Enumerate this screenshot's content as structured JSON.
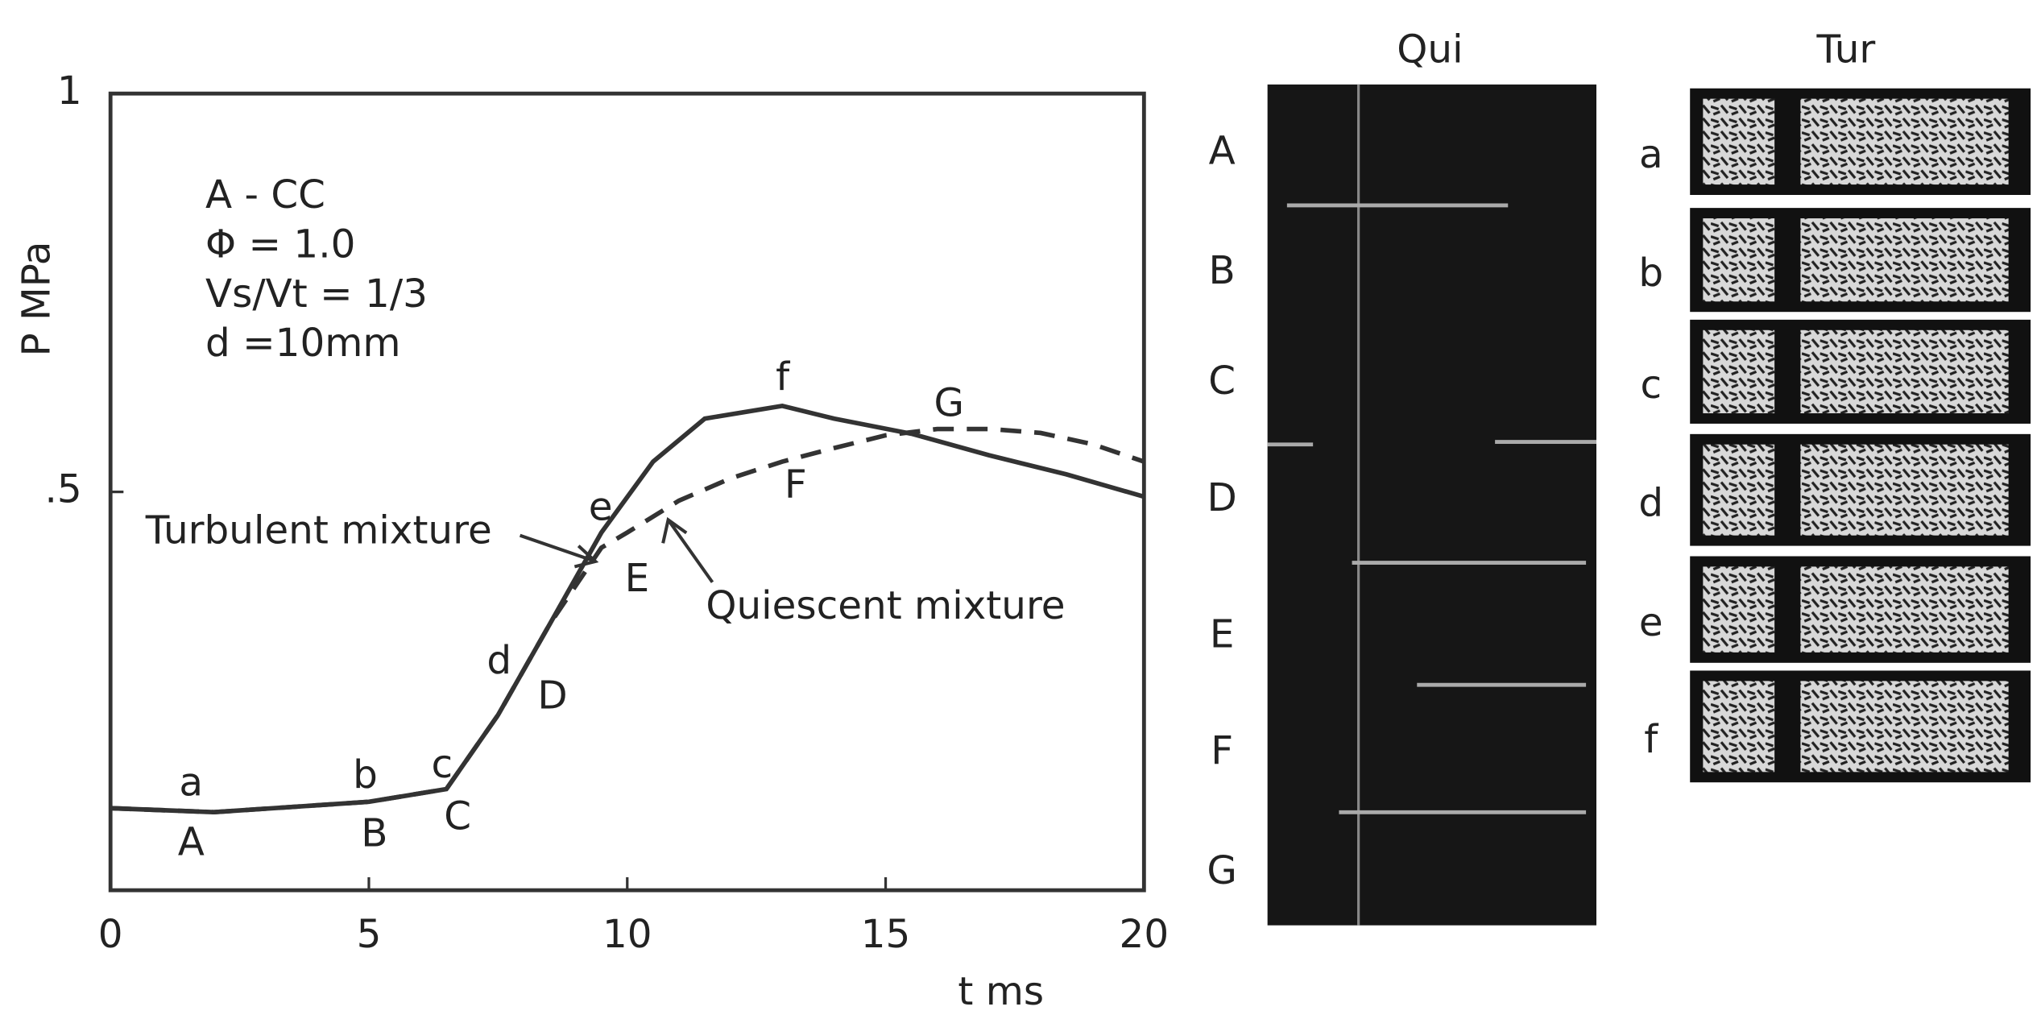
{
  "chart_data": {
    "type": "line",
    "xlabel": "t ms",
    "ylabel": "P MPa",
    "xlim": [
      0,
      20
    ],
    "ylim": [
      0,
      1
    ],
    "xticks": [
      0,
      5,
      10,
      15,
      20
    ],
    "yticks": [
      {
        "value": 0.5,
        "label": ".5"
      },
      1
    ],
    "conditions": [
      "A - CC",
      "Φ = 1.0",
      "Vs/Vt = 1/3",
      "d =10mm"
    ],
    "point_labels": [
      "a",
      "A",
      "b",
      "B",
      "c",
      "C",
      "d",
      "D",
      "e",
      "E",
      "f",
      "F",
      "G"
    ],
    "series": [
      {
        "name": "Turbulent mixture",
        "color": "#333333",
        "style": "solid",
        "x": [
          0,
          2,
          5,
          6.5,
          7.5,
          8.5,
          9.5,
          10.5,
          11.5,
          13,
          14,
          15.5,
          17,
          18.5,
          20
        ],
        "values": [
          0.103,
          0.098,
          0.111,
          0.127,
          0.22,
          0.334,
          0.449,
          0.538,
          0.592,
          0.608,
          0.592,
          0.573,
          0.546,
          0.522,
          0.494
        ]
      },
      {
        "name": "Quiescent mixture",
        "color": "#333333",
        "style": "dashed",
        "x": [
          0,
          2,
          5,
          6.5,
          7.5,
          8.5,
          9.5,
          10,
          11,
          12,
          13,
          14,
          15,
          16,
          17,
          18,
          19,
          20
        ],
        "values": [
          0.103,
          0.098,
          0.111,
          0.127,
          0.22,
          0.334,
          0.43,
          0.449,
          0.489,
          0.517,
          0.538,
          0.555,
          0.571,
          0.579,
          0.579,
          0.574,
          0.56,
          0.538
        ]
      }
    ]
  },
  "photos": {
    "quiescent": {
      "title": "Qui",
      "labels": [
        "A",
        "B",
        "C",
        "D",
        "E",
        "F",
        "G"
      ]
    },
    "turbulent": {
      "title": "Tur",
      "labels": [
        "a",
        "b",
        "c",
        "d",
        "e",
        "f"
      ]
    }
  }
}
